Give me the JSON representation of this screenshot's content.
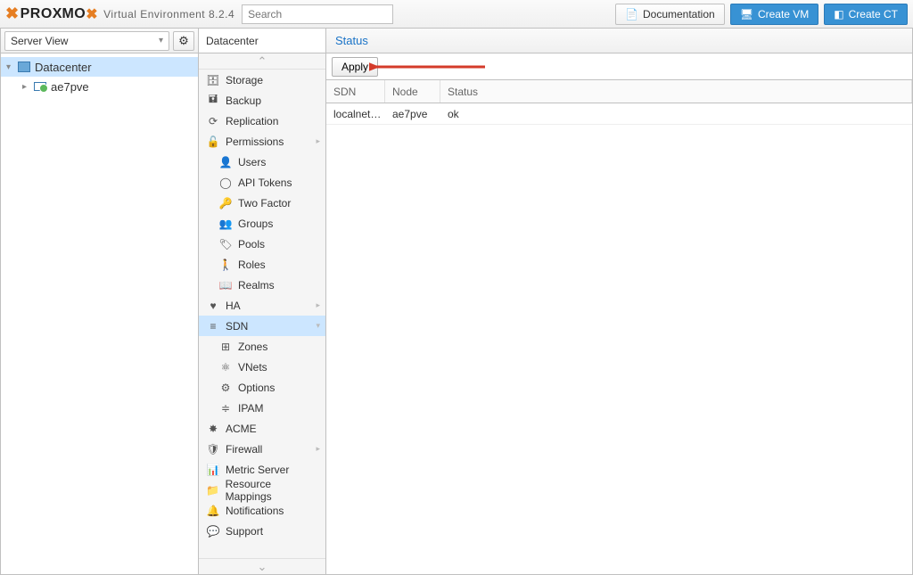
{
  "header": {
    "product": "PROXMOX",
    "subtitle": "Virtual Environment 8.2.4",
    "search_placeholder": "Search",
    "doc_btn": "Documentation",
    "create_vm": "Create VM",
    "create_ct": "Create CT"
  },
  "left": {
    "view_selector": "Server View",
    "tree": {
      "root_label": "Datacenter",
      "node_label": "ae7pve"
    }
  },
  "mid": {
    "breadcrumb": "Datacenter",
    "items": [
      {
        "icon": "i-db",
        "label": "Storage",
        "child": false
      },
      {
        "icon": "i-save",
        "label": "Backup",
        "child": false
      },
      {
        "icon": "i-refresh",
        "label": "Replication",
        "child": false
      },
      {
        "icon": "i-lock",
        "label": "Permissions",
        "child": false,
        "expand": true
      },
      {
        "icon": "i-user",
        "label": "Users",
        "child": true
      },
      {
        "icon": "i-token",
        "label": "API Tokens",
        "child": true
      },
      {
        "icon": "i-key",
        "label": "Two Factor",
        "child": true
      },
      {
        "icon": "i-group",
        "label": "Groups",
        "child": true
      },
      {
        "icon": "i-tag",
        "label": "Pools",
        "child": true
      },
      {
        "icon": "i-male",
        "label": "Roles",
        "child": true
      },
      {
        "icon": "i-book",
        "label": "Realms",
        "child": true
      },
      {
        "icon": "i-heart",
        "label": "HA",
        "child": false,
        "expand": true
      },
      {
        "icon": "i-sdn",
        "label": "SDN",
        "child": false,
        "selected": true,
        "expand": true
      },
      {
        "icon": "i-zones",
        "label": "Zones",
        "child": true
      },
      {
        "icon": "i-vnet",
        "label": "VNets",
        "child": true
      },
      {
        "icon": "i-opts",
        "label": "Options",
        "child": true
      },
      {
        "icon": "i-ipam",
        "label": "IPAM",
        "child": true
      },
      {
        "icon": "i-acme",
        "label": "ACME",
        "child": false
      },
      {
        "icon": "i-shield",
        "label": "Firewall",
        "child": false,
        "expand": true
      },
      {
        "icon": "i-chart",
        "label": "Metric Server",
        "child": false
      },
      {
        "icon": "i-folder",
        "label": "Resource Mappings",
        "child": false
      },
      {
        "icon": "i-bell",
        "label": "Notifications",
        "child": false
      },
      {
        "icon": "i-comment",
        "label": "Support",
        "child": false
      }
    ]
  },
  "content": {
    "title": "Status",
    "apply_label": "Apply",
    "columns": {
      "sdn": "SDN",
      "node": "Node",
      "status": "Status"
    },
    "rows": [
      {
        "sdn": "localnet…",
        "node": "ae7pve",
        "status": "ok"
      }
    ],
    "annotation_arrow_color": "#d43b2a"
  },
  "colors": {
    "selection_bg": "#cce6ff",
    "accent_blue": "#3892d4",
    "link_blue": "#1a73c7",
    "border": "#c0c0c0"
  }
}
